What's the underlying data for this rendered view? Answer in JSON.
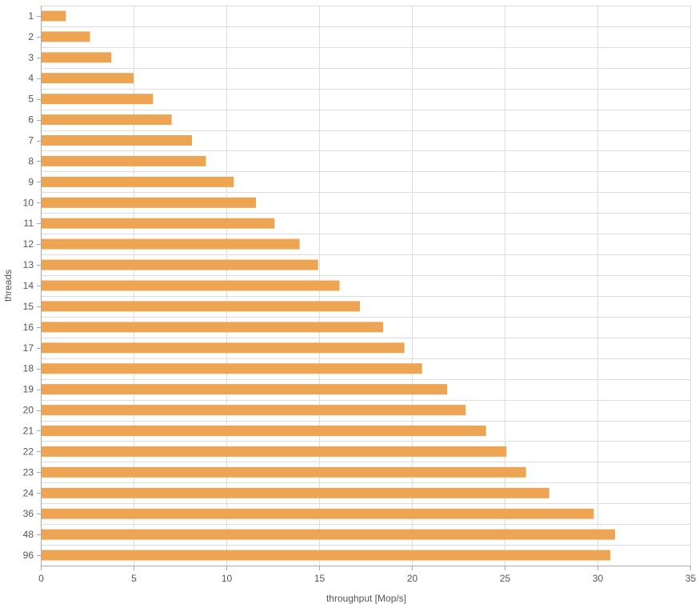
{
  "chart_data": {
    "type": "bar",
    "orientation": "horizontal",
    "title": "",
    "xlabel": "throughput [Mop/s]",
    "ylabel": "threads",
    "xlim": [
      0,
      35
    ],
    "x_ticks": [
      0,
      5,
      10,
      15,
      20,
      25,
      30,
      35
    ],
    "grid": true,
    "legend": "none",
    "bar_color": "#eea553",
    "categories": [
      "1",
      "2",
      "3",
      "4",
      "5",
      "6",
      "7",
      "8",
      "9",
      "10",
      "11",
      "12",
      "13",
      "14",
      "15",
      "16",
      "17",
      "18",
      "19",
      "20",
      "21",
      "22",
      "23",
      "24",
      "36",
      "48",
      "96"
    ],
    "series": [
      {
        "values": [
          1.35,
          2.65,
          3.8,
          5.0,
          6.05,
          7.05,
          8.15,
          8.9,
          10.4,
          11.6,
          12.6,
          13.95,
          14.95,
          16.1,
          17.2,
          18.45,
          19.6,
          20.55,
          21.9,
          22.9,
          24.0,
          25.1,
          26.15,
          27.4,
          29.8,
          30.95,
          30.7
        ]
      }
    ]
  }
}
